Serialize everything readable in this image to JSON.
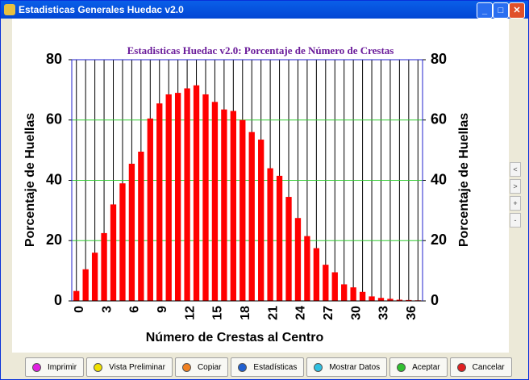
{
  "window": {
    "title": "Estadisticas Generales Huedac v2.0"
  },
  "chart_data": {
    "type": "bar",
    "title": "Estadisticas Huedac v2.0: Porcentaje de Número de Crestas",
    "xlabel": "Número de Crestas al Centro",
    "ylabel": "Porcentaje de Huellas",
    "y2label": "Porcentaje de Huellas",
    "categories": [
      "0",
      null,
      null,
      "3",
      null,
      null,
      "6",
      null,
      null,
      "9",
      null,
      null,
      "12",
      null,
      null,
      "15",
      null,
      null,
      "18",
      null,
      null,
      "21",
      null,
      null,
      "24",
      null,
      null,
      "27",
      null,
      null,
      "30",
      null,
      null,
      "33",
      null,
      null,
      "36",
      null
    ],
    "values": [
      3.3,
      10.5,
      16,
      22.5,
      32,
      39,
      45.5,
      49.5,
      60.5,
      65.5,
      68.5,
      69,
      70.5,
      71.5,
      68.5,
      66,
      63.5,
      63,
      60,
      56,
      53.5,
      44,
      41.5,
      34.5,
      27.5,
      21.5,
      17.5,
      12,
      9.5,
      5.5,
      4.5,
      3,
      1.5,
      1,
      0.7,
      0.4,
      0.3,
      0.2
    ],
    "color": "#ff0000",
    "ylim": [
      0,
      80
    ],
    "yticks": [
      0,
      20,
      40,
      60,
      80
    ],
    "y2lim": [
      0,
      80
    ],
    "y2ticks": [
      0,
      20,
      40,
      60,
      80
    ],
    "grid": true
  },
  "side_buttons": [
    "<",
    ">",
    "+",
    "-"
  ],
  "buttons": [
    {
      "label": "Imprimir",
      "icon_color": "#e020e0"
    },
    {
      "label": "Vista Preliminar",
      "icon_color": "#f0e000"
    },
    {
      "label": "Copiar",
      "icon_color": "#f08020"
    },
    {
      "label": "Estadísticas",
      "icon_color": "#2060d0"
    },
    {
      "label": "Mostrar Datos",
      "icon_color": "#30c0e0"
    },
    {
      "label": "Aceptar",
      "icon_color": "#30c030"
    },
    {
      "label": "Cancelar",
      "icon_color": "#e02020"
    }
  ]
}
